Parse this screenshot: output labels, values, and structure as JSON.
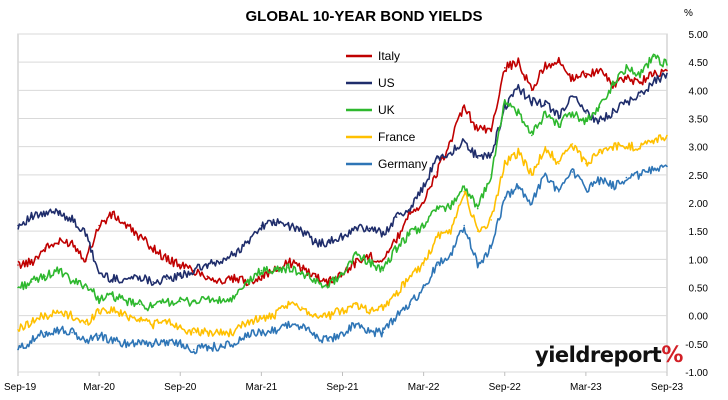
{
  "chart_data": {
    "type": "line",
    "title": "GLOBAL 10-YEAR BOND YIELDS",
    "ylabel": "%",
    "ylim": [
      -1.0,
      5.0
    ],
    "y_ticks": [
      "5.00",
      "4.50",
      "4.00",
      "3.50",
      "3.00",
      "2.50",
      "2.00",
      "1.50",
      "1.00",
      "0.50",
      "0.00",
      "-0.50",
      "-1.00"
    ],
    "x_ticks": [
      "Sep-19",
      "Mar-20",
      "Sep-20",
      "Mar-21",
      "Sep-21",
      "Mar-22",
      "Sep-22",
      "Mar-23",
      "Sep-23"
    ],
    "grid": true,
    "legend_position": "top-center",
    "x": [
      "Sep-19",
      "Oct-19",
      "Nov-19",
      "Dec-19",
      "Jan-20",
      "Feb-20",
      "Mar-20",
      "Apr-20",
      "May-20",
      "Jun-20",
      "Jul-20",
      "Aug-20",
      "Sep-20",
      "Oct-20",
      "Nov-20",
      "Dec-20",
      "Jan-21",
      "Feb-21",
      "Mar-21",
      "Apr-21",
      "May-21",
      "Jun-21",
      "Jul-21",
      "Aug-21",
      "Sep-21",
      "Oct-21",
      "Nov-21",
      "Dec-21",
      "Jan-22",
      "Feb-22",
      "Mar-22",
      "Apr-22",
      "May-22",
      "Jun-22",
      "Jul-22",
      "Aug-22",
      "Sep-22",
      "Oct-22",
      "Nov-22",
      "Dec-22",
      "Jan-23",
      "Feb-23",
      "Mar-23",
      "Apr-23",
      "May-23",
      "Jun-23",
      "Jul-23",
      "Aug-23",
      "Sep-23"
    ],
    "series": [
      {
        "name": "Italy",
        "color": "#c00000",
        "values": [
          0.9,
          0.95,
          1.2,
          1.3,
          1.3,
          1.0,
          1.6,
          1.8,
          1.6,
          1.4,
          1.2,
          1.0,
          0.9,
          0.8,
          0.7,
          0.6,
          0.65,
          0.6,
          0.7,
          0.8,
          0.95,
          0.85,
          0.7,
          0.6,
          0.75,
          0.95,
          1.05,
          1.0,
          1.35,
          1.85,
          2.0,
          2.55,
          3.1,
          3.7,
          3.3,
          3.3,
          4.4,
          4.5,
          4.0,
          4.45,
          4.5,
          4.2,
          4.3,
          4.35,
          4.1,
          4.2,
          4.15,
          4.3,
          4.35
        ]
      },
      {
        "name": "US",
        "color": "#1f2d6b",
        "values": [
          1.6,
          1.75,
          1.8,
          1.85,
          1.7,
          1.45,
          0.75,
          0.65,
          0.65,
          0.7,
          0.6,
          0.65,
          0.7,
          0.8,
          0.9,
          0.95,
          1.1,
          1.3,
          1.6,
          1.65,
          1.6,
          1.5,
          1.3,
          1.3,
          1.4,
          1.55,
          1.55,
          1.45,
          1.75,
          1.9,
          2.3,
          2.8,
          2.9,
          3.1,
          2.8,
          2.85,
          3.7,
          4.05,
          3.8,
          3.75,
          3.55,
          3.9,
          3.6,
          3.45,
          3.6,
          3.8,
          3.9,
          4.15,
          4.3
        ]
      },
      {
        "name": "UK",
        "color": "#2eb82e",
        "values": [
          0.5,
          0.6,
          0.7,
          0.8,
          0.6,
          0.55,
          0.3,
          0.35,
          0.25,
          0.2,
          0.15,
          0.25,
          0.25,
          0.25,
          0.3,
          0.25,
          0.3,
          0.6,
          0.8,
          0.8,
          0.85,
          0.75,
          0.6,
          0.55,
          0.75,
          1.1,
          0.95,
          0.8,
          1.2,
          1.45,
          1.6,
          1.9,
          1.95,
          2.3,
          1.9,
          2.5,
          3.8,
          3.6,
          3.2,
          3.6,
          3.4,
          3.6,
          3.45,
          3.7,
          4.1,
          4.4,
          4.3,
          4.6,
          4.45
        ]
      },
      {
        "name": "France",
        "color": "#ffc000",
        "values": [
          -0.25,
          -0.1,
          0.0,
          0.05,
          0.0,
          -0.15,
          0.1,
          0.1,
          0.0,
          -0.05,
          -0.15,
          -0.1,
          -0.2,
          -0.3,
          -0.3,
          -0.3,
          -0.3,
          -0.1,
          -0.05,
          0.0,
          0.2,
          0.15,
          0.0,
          0.0,
          0.1,
          0.2,
          0.1,
          0.15,
          0.4,
          0.7,
          0.9,
          1.4,
          1.5,
          2.2,
          1.5,
          1.7,
          2.7,
          2.9,
          2.5,
          3.0,
          2.7,
          3.05,
          2.7,
          2.9,
          3.0,
          3.0,
          3.0,
          3.1,
          3.2
        ]
      },
      {
        "name": "Germany",
        "color": "#2e75b6",
        "values": [
          -0.6,
          -0.45,
          -0.3,
          -0.25,
          -0.3,
          -0.45,
          -0.35,
          -0.45,
          -0.5,
          -0.45,
          -0.5,
          -0.45,
          -0.5,
          -0.6,
          -0.55,
          -0.55,
          -0.5,
          -0.35,
          -0.3,
          -0.25,
          -0.15,
          -0.2,
          -0.35,
          -0.45,
          -0.3,
          -0.15,
          -0.3,
          -0.3,
          0.0,
          0.2,
          0.5,
          0.9,
          1.1,
          1.6,
          0.9,
          1.2,
          2.1,
          2.3,
          2.0,
          2.5,
          2.2,
          2.55,
          2.25,
          2.4,
          2.3,
          2.45,
          2.5,
          2.6,
          2.65
        ]
      }
    ]
  },
  "branding": {
    "logo_text": "yieldreport",
    "logo_mark": "%"
  }
}
